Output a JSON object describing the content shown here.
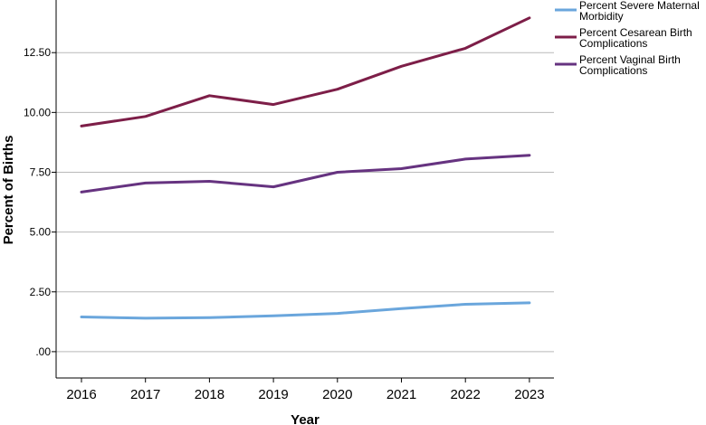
{
  "chart_data": {
    "type": "line",
    "xlabel": "Year",
    "ylabel": "Percent of Births",
    "x": [
      2016,
      2017,
      2018,
      2019,
      2020,
      2021,
      2022,
      2023
    ],
    "x_tick_labels": [
      "2016",
      "2017",
      "2018",
      "2019",
      "2020",
      "2021",
      "2022",
      "2023"
    ],
    "y_ticks": [
      0,
      2.5,
      5,
      7.5,
      10,
      12.5
    ],
    "y_tick_labels": [
      ".00",
      "2.50",
      "5.00",
      "7.50",
      "10.00",
      "12.50"
    ],
    "ylim": [
      -1.1,
      14.7
    ],
    "grid": "horizontal",
    "legend_position": "right",
    "series": [
      {
        "name": "Percent Severe Maternal Morbidity",
        "name_lines": [
          "Percent Severe Maternal",
          "Morbidity"
        ],
        "color": "#6aa6dc",
        "values": [
          1.45,
          1.4,
          1.42,
          1.5,
          1.6,
          1.8,
          1.98,
          2.04
        ]
      },
      {
        "name": "Percent Cesarean Birth Complications",
        "name_lines": [
          "Percent Cesarean Birth",
          "Complications"
        ],
        "color": "#7d1e48",
        "values": [
          9.43,
          9.83,
          10.7,
          10.33,
          10.97,
          11.93,
          12.68,
          13.95
        ]
      },
      {
        "name": "Percent Vaginal Birth Complications",
        "name_lines": [
          "Percent Vaginal Birth",
          "Complications"
        ],
        "color": "#663380",
        "values": [
          6.67,
          7.05,
          7.12,
          6.89,
          7.5,
          7.65,
          8.05,
          8.21
        ]
      }
    ]
  }
}
